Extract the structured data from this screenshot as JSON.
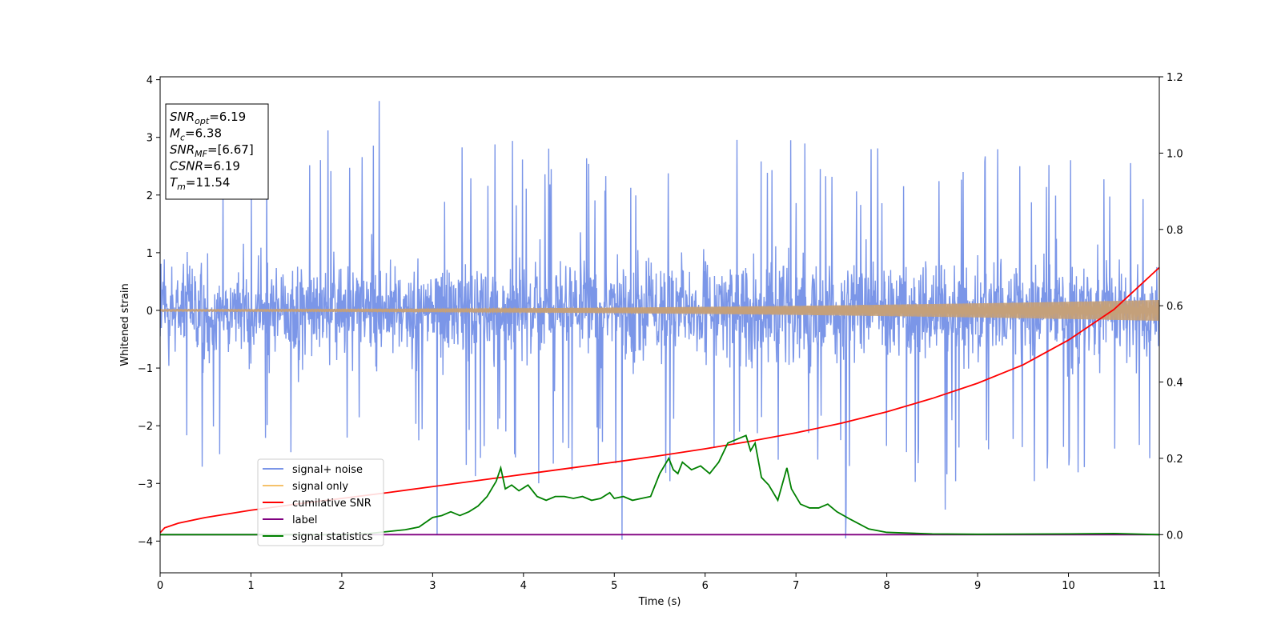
{
  "chart_data": {
    "type": "line",
    "xlabel": "Time (s)",
    "ylabel": "Whitened strain",
    "xlim": [
      0,
      11
    ],
    "ylim": [
      -4.55,
      4.05
    ],
    "y2lim": [
      -0.1,
      1.2
    ],
    "x_ticks": [
      0,
      1,
      2,
      3,
      4,
      5,
      6,
      7,
      8,
      9,
      10,
      11
    ],
    "y_ticks": [
      4,
      3,
      2,
      1,
      0,
      -1,
      -2,
      -3,
      -4
    ],
    "y2_ticks": [
      1.2,
      1.0,
      0.8,
      0.6,
      0.4,
      0.2,
      0.0
    ],
    "tick_minus": "−",
    "legend_position": "lower-left",
    "grid": false,
    "annotation": {
      "lines": [
        {
          "main": "SNR",
          "sub": "opt",
          "value": "=6.19"
        },
        {
          "main": "M",
          "sub": "c",
          "value": "=6.38"
        },
        {
          "main": "SNR",
          "sub": "MF",
          "value": "=[6.67]"
        },
        {
          "main": "CSNR",
          "sub": "",
          "value": "=6.19"
        },
        {
          "main": "T",
          "sub": "m",
          "value": "=11.54"
        }
      ]
    },
    "series": [
      {
        "name": "signal+ noise",
        "color": "#7b96e8",
        "kind": "noise",
        "axis": "left",
        "std": 0.95,
        "spike_max": 3.65,
        "spike_min": -4.05,
        "samples": 2400
      },
      {
        "name": "signal only",
        "color": "#f5c26b",
        "kind": "chirp",
        "axis": "left",
        "amp_start": 0.02,
        "amp_end": 0.18,
        "blend_color": "#c4a07a"
      },
      {
        "name": "cumilative SNR",
        "color": "#ff0000",
        "kind": "line",
        "axis": "right",
        "x": [
          0,
          0.05,
          0.2,
          0.5,
          1,
          1.5,
          2,
          2.5,
          3,
          3.5,
          4,
          4.5,
          5,
          5.5,
          6,
          6.5,
          7,
          7.5,
          8,
          8.5,
          9,
          9.5,
          10,
          10.5,
          11
        ],
        "y": [
          0.005,
          0.018,
          0.03,
          0.045,
          0.064,
          0.08,
          0.095,
          0.11,
          0.126,
          0.142,
          0.158,
          0.174,
          0.19,
          0.207,
          0.225,
          0.245,
          0.267,
          0.292,
          0.322,
          0.357,
          0.397,
          0.445,
          0.51,
          0.59,
          0.7
        ]
      },
      {
        "name": "label",
        "color": "#800080",
        "kind": "line",
        "axis": "right",
        "x": [
          0,
          11
        ],
        "y": [
          0.0,
          0.0
        ]
      },
      {
        "name": "signal statistics",
        "color": "#008000",
        "kind": "line",
        "axis": "right",
        "x": [
          0,
          1,
          2,
          2.3,
          2.5,
          2.7,
          2.85,
          3.0,
          3.1,
          3.2,
          3.3,
          3.4,
          3.5,
          3.6,
          3.7,
          3.75,
          3.8,
          3.87,
          3.95,
          4.05,
          4.15,
          4.25,
          4.35,
          4.45,
          4.55,
          4.65,
          4.75,
          4.85,
          4.95,
          5.0,
          5.1,
          5.2,
          5.3,
          5.4,
          5.5,
          5.6,
          5.65,
          5.7,
          5.75,
          5.85,
          5.95,
          6.05,
          6.15,
          6.25,
          6.35,
          6.45,
          6.5,
          6.55,
          6.62,
          6.7,
          6.8,
          6.9,
          6.95,
          7.05,
          7.15,
          7.25,
          7.35,
          7.45,
          7.6,
          7.8,
          8.0,
          8.5,
          9.0,
          10.0,
          10.5,
          11.0
        ],
        "y": [
          0.0,
          0.0,
          0.0,
          0.003,
          0.008,
          0.013,
          0.02,
          0.045,
          0.05,
          0.06,
          0.05,
          0.06,
          0.075,
          0.1,
          0.14,
          0.175,
          0.12,
          0.13,
          0.115,
          0.13,
          0.1,
          0.09,
          0.1,
          0.1,
          0.095,
          0.1,
          0.09,
          0.095,
          0.11,
          0.095,
          0.1,
          0.09,
          0.095,
          0.1,
          0.16,
          0.2,
          0.17,
          0.16,
          0.19,
          0.17,
          0.18,
          0.16,
          0.19,
          0.24,
          0.25,
          0.26,
          0.22,
          0.24,
          0.15,
          0.13,
          0.09,
          0.175,
          0.12,
          0.08,
          0.07,
          0.07,
          0.08,
          0.06,
          0.04,
          0.015,
          0.006,
          0.002,
          0.001,
          0.002,
          0.003,
          0.0
        ]
      }
    ]
  }
}
